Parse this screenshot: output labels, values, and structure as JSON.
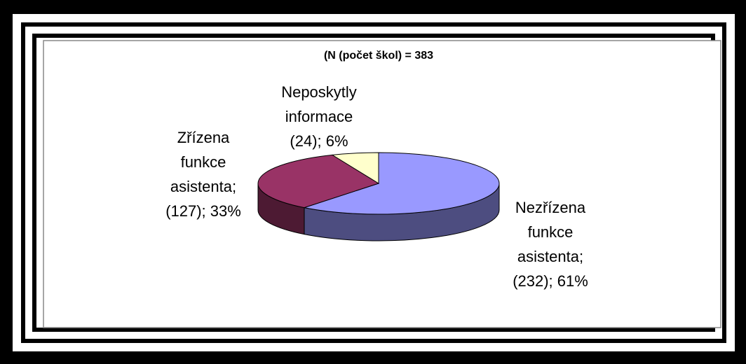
{
  "chart_data": {
    "type": "pie",
    "subtitle": "(N (počet škol) = 383",
    "categories": [
      [
        "Nezřízena",
        "funkce",
        "asistenta;"
      ],
      [
        "Zřízena",
        "funkce",
        "asistenta;"
      ],
      [
        "Neposkytly",
        "informace"
      ]
    ],
    "values": [
      232,
      127,
      24
    ],
    "value_labels": [
      "(232); 61%",
      "(127); 33%",
      "(24); 6%"
    ],
    "colors": [
      "#9999ff",
      "#993366",
      "#ffffcc"
    ],
    "side_colors": [
      "#4d4d80",
      "#4d1a33",
      "#80806a"
    ]
  }
}
